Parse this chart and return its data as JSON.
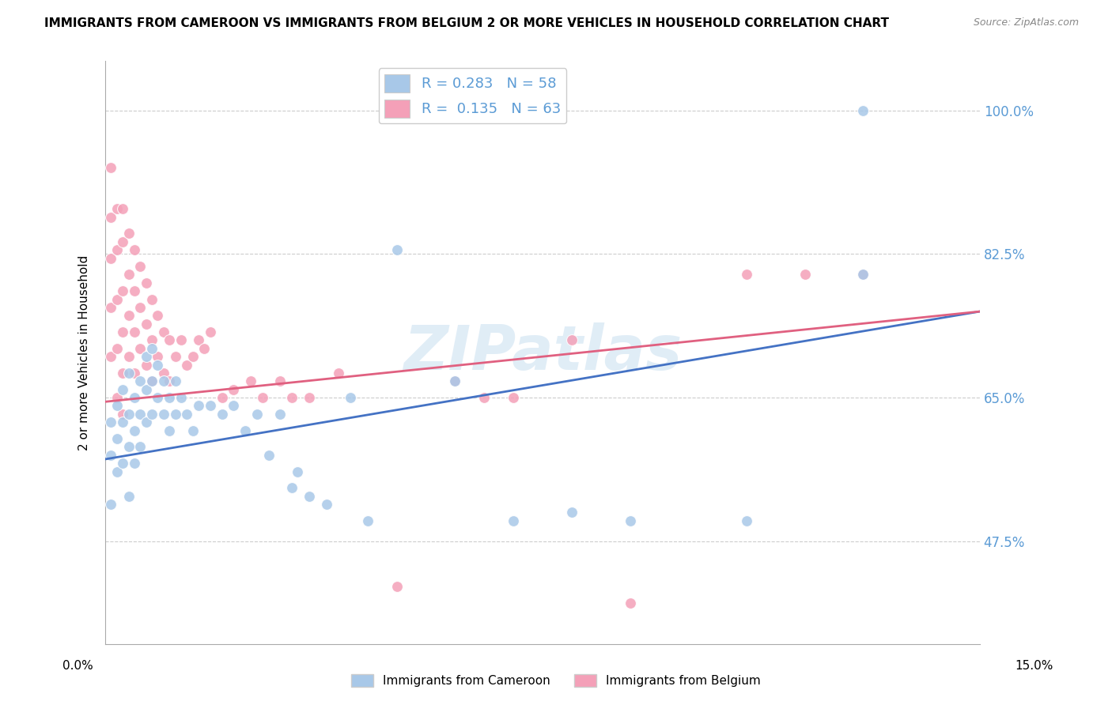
{
  "title": "IMMIGRANTS FROM CAMEROON VS IMMIGRANTS FROM BELGIUM 2 OR MORE VEHICLES IN HOUSEHOLD CORRELATION CHART",
  "source": "Source: ZipAtlas.com",
  "ylabel": "2 or more Vehicles in Household",
  "xlim": [
    0.0,
    0.15
  ],
  "ylim": [
    0.35,
    1.06
  ],
  "cameroon_R": 0.283,
  "cameroon_N": 58,
  "belgium_R": 0.135,
  "belgium_N": 63,
  "cameroon_color": "#a8c8e8",
  "belgium_color": "#f4a0b8",
  "cameroon_line_color": "#4472c4",
  "belgium_line_color": "#e06080",
  "watermark": "ZIPatlas",
  "cam_line_x0": 0.0,
  "cam_line_y0": 0.575,
  "cam_line_x1": 0.15,
  "cam_line_y1": 0.755,
  "bel_line_x0": 0.0,
  "bel_line_y0": 0.645,
  "bel_line_x1": 0.15,
  "bel_line_y1": 0.755,
  "cameroon_x": [
    0.001,
    0.001,
    0.001,
    0.002,
    0.002,
    0.002,
    0.003,
    0.003,
    0.003,
    0.004,
    0.004,
    0.004,
    0.004,
    0.005,
    0.005,
    0.005,
    0.006,
    0.006,
    0.006,
    0.007,
    0.007,
    0.007,
    0.008,
    0.008,
    0.008,
    0.009,
    0.009,
    0.01,
    0.01,
    0.011,
    0.011,
    0.012,
    0.012,
    0.013,
    0.014,
    0.015,
    0.016,
    0.018,
    0.02,
    0.022,
    0.024,
    0.026,
    0.028,
    0.03,
    0.032,
    0.033,
    0.035,
    0.038,
    0.042,
    0.045,
    0.05,
    0.06,
    0.07,
    0.08,
    0.09,
    0.11,
    0.13,
    0.13
  ],
  "cameroon_y": [
    0.62,
    0.58,
    0.52,
    0.64,
    0.6,
    0.56,
    0.66,
    0.62,
    0.57,
    0.68,
    0.63,
    0.59,
    0.53,
    0.65,
    0.61,
    0.57,
    0.67,
    0.63,
    0.59,
    0.7,
    0.66,
    0.62,
    0.71,
    0.67,
    0.63,
    0.69,
    0.65,
    0.67,
    0.63,
    0.65,
    0.61,
    0.67,
    0.63,
    0.65,
    0.63,
    0.61,
    0.64,
    0.64,
    0.63,
    0.64,
    0.61,
    0.63,
    0.58,
    0.63,
    0.54,
    0.56,
    0.53,
    0.52,
    0.65,
    0.5,
    0.83,
    0.67,
    0.5,
    0.51,
    0.5,
    0.5,
    0.8,
    1.0
  ],
  "belgium_x": [
    0.001,
    0.001,
    0.001,
    0.001,
    0.001,
    0.002,
    0.002,
    0.002,
    0.002,
    0.002,
    0.003,
    0.003,
    0.003,
    0.003,
    0.003,
    0.003,
    0.004,
    0.004,
    0.004,
    0.004,
    0.005,
    0.005,
    0.005,
    0.005,
    0.006,
    0.006,
    0.006,
    0.007,
    0.007,
    0.007,
    0.008,
    0.008,
    0.008,
    0.009,
    0.009,
    0.01,
    0.01,
    0.011,
    0.011,
    0.012,
    0.013,
    0.014,
    0.015,
    0.016,
    0.017,
    0.018,
    0.02,
    0.022,
    0.025,
    0.027,
    0.03,
    0.032,
    0.035,
    0.04,
    0.05,
    0.06,
    0.065,
    0.07,
    0.08,
    0.09,
    0.11,
    0.12,
    0.13
  ],
  "belgium_y": [
    0.93,
    0.87,
    0.82,
    0.76,
    0.7,
    0.88,
    0.83,
    0.77,
    0.71,
    0.65,
    0.88,
    0.84,
    0.78,
    0.73,
    0.68,
    0.63,
    0.85,
    0.8,
    0.75,
    0.7,
    0.83,
    0.78,
    0.73,
    0.68,
    0.81,
    0.76,
    0.71,
    0.79,
    0.74,
    0.69,
    0.77,
    0.72,
    0.67,
    0.75,
    0.7,
    0.73,
    0.68,
    0.72,
    0.67,
    0.7,
    0.72,
    0.69,
    0.7,
    0.72,
    0.71,
    0.73,
    0.65,
    0.66,
    0.67,
    0.65,
    0.67,
    0.65,
    0.65,
    0.68,
    0.42,
    0.67,
    0.65,
    0.65,
    0.72,
    0.4,
    0.8,
    0.8,
    0.8
  ]
}
